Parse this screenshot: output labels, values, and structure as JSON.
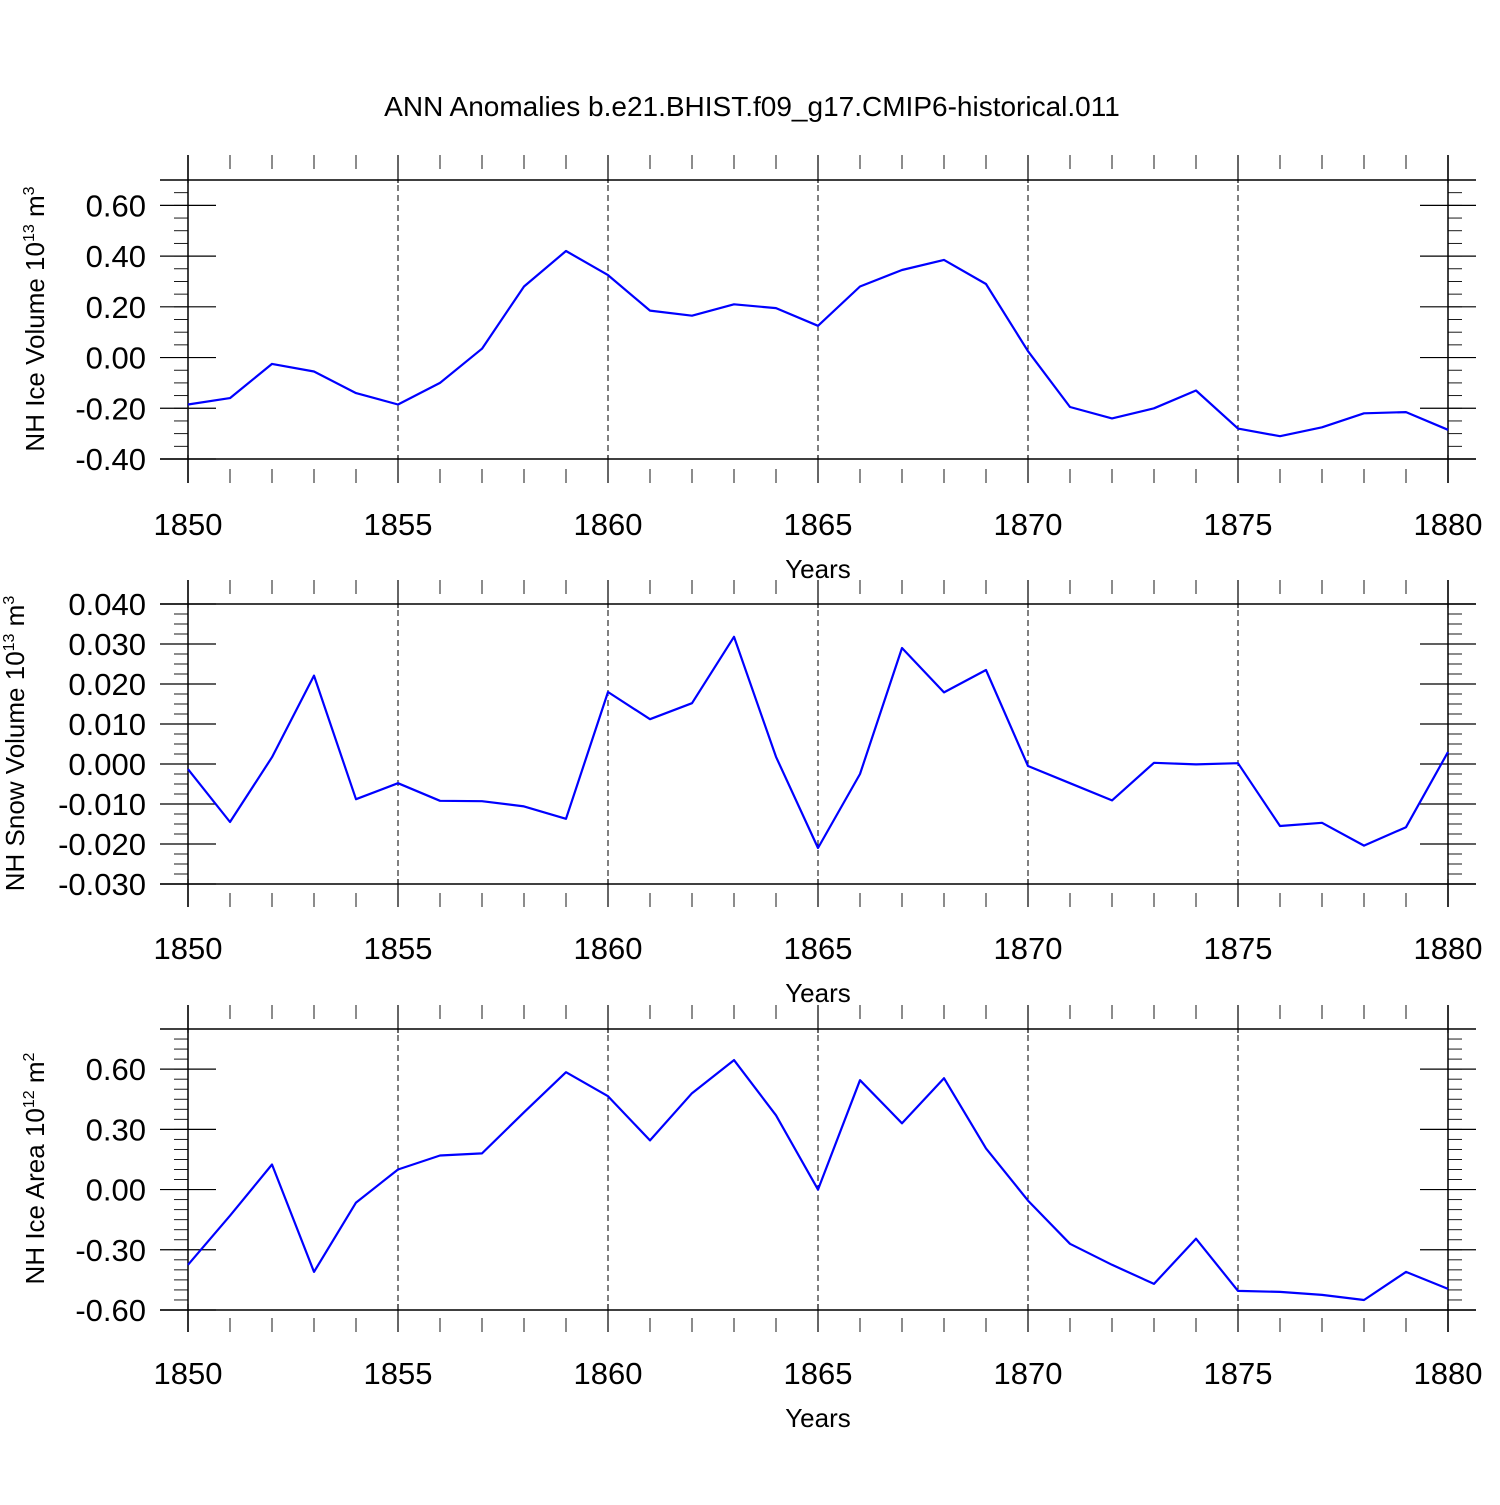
{
  "title": "ANN Anomalies b.e21.BHIST.f09_g17.CMIP6-historical.011",
  "colors": {
    "line": "#0000ff",
    "axis": "#000000",
    "background": "#ffffff"
  },
  "chart_data": [
    {
      "type": "line",
      "xlabel": "Years",
      "ylabel": "NH Ice Volume 10",
      "ylabel_exp": "13",
      "ylabel_unit": "m",
      "ylabel_unit_exp": "3",
      "xlim": [
        1850,
        1880
      ],
      "ylim": [
        -0.4,
        0.7
      ],
      "yticks": [
        -0.4,
        -0.2,
        0.0,
        0.2,
        0.4,
        0.6
      ],
      "yticklabels": [
        "-0.40",
        "-0.20",
        "0.00",
        "0.20",
        "0.40",
        "0.60"
      ],
      "xticks": [
        1850,
        1855,
        1860,
        1865,
        1870,
        1875,
        1880
      ],
      "xticklabels": [
        "1850",
        "1855",
        "1860",
        "1865",
        "1870",
        "1875",
        "1880"
      ],
      "grid": "vertical dashed at major x ticks",
      "x": [
        1850,
        1851,
        1852,
        1853,
        1854,
        1855,
        1856,
        1857,
        1858,
        1859,
        1860,
        1861,
        1862,
        1863,
        1864,
        1865,
        1866,
        1867,
        1868,
        1869,
        1870,
        1871,
        1872,
        1873,
        1874,
        1875,
        1876,
        1877,
        1878,
        1879,
        1880
      ],
      "values": [
        -0.185,
        -0.16,
        -0.025,
        -0.055,
        -0.14,
        -0.185,
        -0.1,
        0.035,
        0.28,
        0.42,
        0.325,
        0.185,
        0.165,
        0.21,
        0.195,
        0.125,
        0.28,
        0.345,
        0.385,
        0.29,
        0.025,
        -0.195,
        -0.24,
        -0.2,
        -0.13,
        -0.28,
        -0.31,
        -0.275,
        -0.22,
        -0.215,
        -0.285
      ]
    },
    {
      "type": "line",
      "xlabel": "Years",
      "ylabel": "NH Snow Volume 10",
      "ylabel_exp": "13",
      "ylabel_unit": "m",
      "ylabel_unit_exp": "3",
      "xlim": [
        1850,
        1880
      ],
      "ylim": [
        -0.03,
        0.04
      ],
      "yticks": [
        -0.03,
        -0.02,
        -0.01,
        0.0,
        0.01,
        0.02,
        0.03,
        0.04
      ],
      "yticklabels": [
        "-0.030",
        "-0.020",
        "-0.010",
        "0.000",
        "0.010",
        "0.020",
        "0.030",
        "0.040"
      ],
      "xticks": [
        1850,
        1855,
        1860,
        1865,
        1870,
        1875,
        1880
      ],
      "xticklabels": [
        "1850",
        "1855",
        "1860",
        "1865",
        "1870",
        "1875",
        "1880"
      ],
      "grid": "vertical dashed at major x ticks",
      "x": [
        1850,
        1851,
        1852,
        1853,
        1854,
        1855,
        1856,
        1857,
        1858,
        1859,
        1860,
        1861,
        1862,
        1863,
        1864,
        1865,
        1866,
        1867,
        1868,
        1869,
        1870,
        1871,
        1872,
        1873,
        1874,
        1875,
        1876,
        1877,
        1878,
        1879,
        1880
      ],
      "values": [
        -0.0013,
        -0.0145,
        0.0017,
        0.0221,
        -0.0088,
        -0.0048,
        -0.0092,
        -0.0093,
        -0.0106,
        -0.0137,
        0.018,
        0.0112,
        0.0152,
        0.0318,
        0.0018,
        -0.021,
        -0.0025,
        0.029,
        0.0179,
        0.0235,
        -0.0005,
        -0.0048,
        -0.0091,
        0.0003,
        -0.0001,
        0.0002,
        -0.0155,
        -0.0147,
        -0.0204,
        -0.0158,
        0.003
      ]
    },
    {
      "type": "line",
      "xlabel": "Years",
      "ylabel": "NH Ice Area 10",
      "ylabel_exp": "12",
      "ylabel_unit": "m",
      "ylabel_unit_exp": "2",
      "xlim": [
        1850,
        1880
      ],
      "ylim": [
        -0.6,
        0.8
      ],
      "yticks": [
        -0.6,
        -0.3,
        0.0,
        0.3,
        0.6
      ],
      "yticklabels": [
        "-0.60",
        "-0.30",
        "0.00",
        "0.30",
        "0.60"
      ],
      "xticks": [
        1850,
        1855,
        1860,
        1865,
        1870,
        1875,
        1880
      ],
      "xticklabels": [
        "1850",
        "1855",
        "1860",
        "1865",
        "1870",
        "1875",
        "1880"
      ],
      "grid": "vertical dashed at major x ticks",
      "x": [
        1850,
        1851,
        1852,
        1853,
        1854,
        1855,
        1856,
        1857,
        1858,
        1859,
        1860,
        1861,
        1862,
        1863,
        1864,
        1865,
        1866,
        1867,
        1868,
        1869,
        1870,
        1871,
        1872,
        1873,
        1874,
        1875,
        1876,
        1877,
        1878,
        1879,
        1880
      ],
      "values": [
        -0.375,
        -0.13,
        0.125,
        -0.41,
        -0.065,
        0.1,
        0.17,
        0.18,
        0.385,
        0.585,
        0.465,
        0.245,
        0.48,
        0.645,
        0.37,
        0.0,
        0.545,
        0.33,
        0.555,
        0.205,
        -0.055,
        -0.27,
        -0.375,
        -0.47,
        -0.245,
        -0.505,
        -0.51,
        -0.525,
        -0.55,
        -0.41,
        -0.495
      ]
    }
  ]
}
